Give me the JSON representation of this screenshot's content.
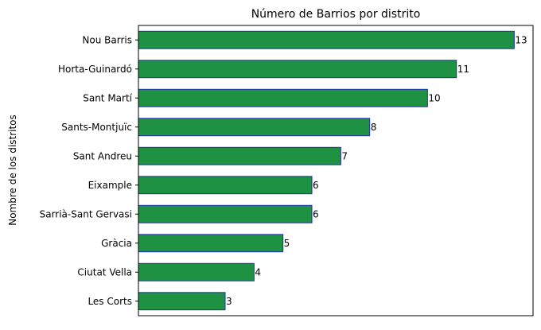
{
  "chart_data": {
    "type": "bar",
    "orientation": "horizontal",
    "title": "Número de Barrios por distrito",
    "xlabel": "",
    "ylabel": "Nombre de los distritos",
    "categories": [
      "Les Corts",
      "Ciutat Vella",
      "Gràcia",
      "Sarrià-Sant Gervasi",
      "Eixample",
      "Sant Andreu",
      "Sants-Montjuïc",
      "Sant Martí",
      "Horta-Guinardó",
      "Nou Barris"
    ],
    "values": [
      3,
      4,
      5,
      6,
      6,
      7,
      8,
      10,
      11,
      13
    ],
    "xlim": [
      0,
      13.65
    ],
    "x_ticks_visible": false,
    "grid": false,
    "bar_color": "#1e9142",
    "bar_edge_color": "#1f2fb5",
    "data_labels": true
  }
}
